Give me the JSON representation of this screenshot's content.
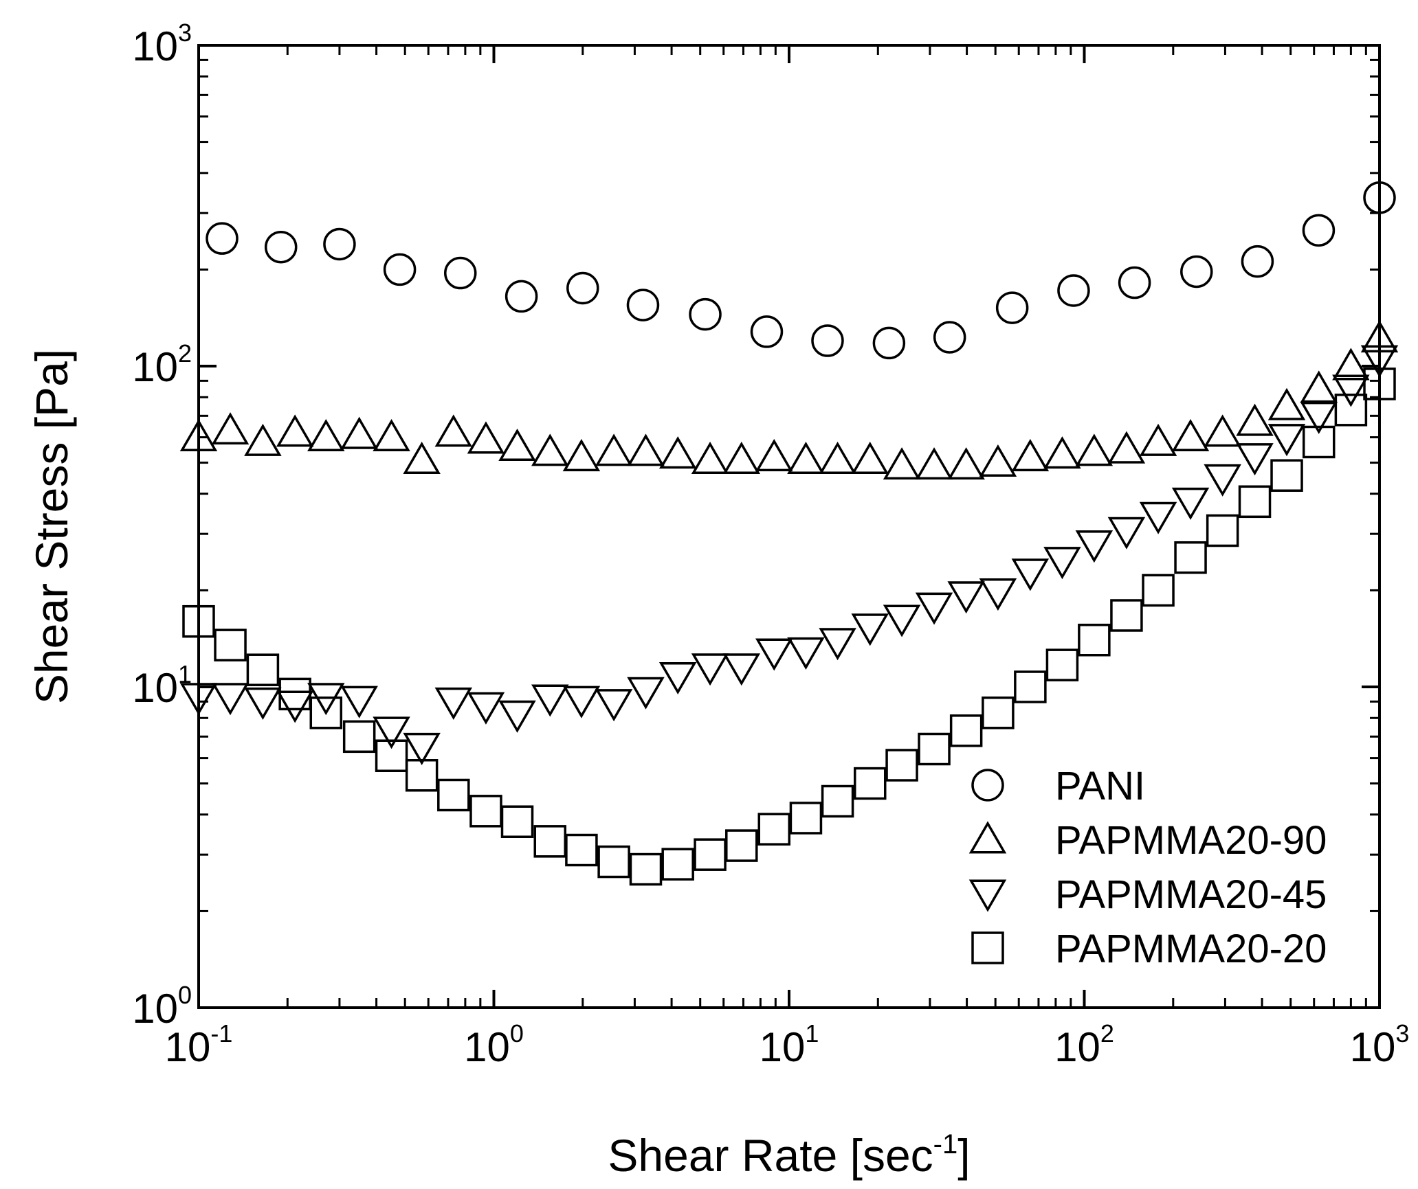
{
  "chart_data": {
    "type": "scatter",
    "title": "",
    "xlabel": "Shear Rate [sec",
    "xlabel_exp": "-1",
    "xlabel_suffix": "]",
    "ylabel": "Shear Stress [Pa]",
    "xscale": "log",
    "yscale": "log",
    "xlim": [
      0.1,
      1000
    ],
    "ylim": [
      1,
      1000
    ],
    "grid": false,
    "legend_position": "lower-right",
    "x_ticks": [
      {
        "value": 0.1,
        "base": "10",
        "exp": "-1"
      },
      {
        "value": 1,
        "base": "10",
        "exp": "0"
      },
      {
        "value": 10,
        "base": "10",
        "exp": "1"
      },
      {
        "value": 100,
        "base": "10",
        "exp": "2"
      },
      {
        "value": 1000,
        "base": "10",
        "exp": "3"
      }
    ],
    "y_ticks": [
      {
        "value": 1,
        "base": "10",
        "exp": "0"
      },
      {
        "value": 10,
        "base": "10",
        "exp": "1"
      },
      {
        "value": 100,
        "base": "10",
        "exp": "2"
      },
      {
        "value": 1000,
        "base": "10",
        "exp": "3"
      }
    ],
    "series": [
      {
        "name": "PANI",
        "marker": "circle",
        "points": [
          [
            0.12,
            250
          ],
          [
            0.19,
            235
          ],
          [
            0.3,
            240
          ],
          [
            0.48,
            200
          ],
          [
            0.77,
            195
          ],
          [
            1.24,
            165
          ],
          [
            2.0,
            175
          ],
          [
            3.2,
            155
          ],
          [
            5.2,
            145
          ],
          [
            8.4,
            128
          ],
          [
            13.5,
            120
          ],
          [
            21.8,
            118
          ],
          [
            35,
            123
          ],
          [
            57,
            152
          ],
          [
            92,
            172
          ],
          [
            148,
            182
          ],
          [
            240,
            197
          ],
          [
            386,
            212
          ],
          [
            622,
            265
          ],
          [
            1000,
            335
          ]
        ]
      },
      {
        "name": "PAPMMA20-90",
        "marker": "triangle-up",
        "points": [
          [
            0.1,
            60
          ],
          [
            0.128,
            63
          ],
          [
            0.165,
            58
          ],
          [
            0.212,
            62
          ],
          [
            0.27,
            60
          ],
          [
            0.35,
            61
          ],
          [
            0.45,
            60
          ],
          [
            0.57,
            51
          ],
          [
            0.73,
            62
          ],
          [
            0.94,
            59
          ],
          [
            1.2,
            56
          ],
          [
            1.55,
            54
          ],
          [
            1.98,
            52
          ],
          [
            2.55,
            54
          ],
          [
            3.27,
            54
          ],
          [
            4.2,
            53
          ],
          [
            5.4,
            51
          ],
          [
            6.9,
            51
          ],
          [
            8.9,
            52
          ],
          [
            11.4,
            51
          ],
          [
            14.6,
            51
          ],
          [
            18.8,
            51
          ],
          [
            24.1,
            49
          ],
          [
            31,
            49
          ],
          [
            39.8,
            49
          ],
          [
            51,
            50
          ],
          [
            65.6,
            52
          ],
          [
            84.2,
            53
          ],
          [
            108,
            54
          ],
          [
            139,
            55
          ],
          [
            178,
            58
          ],
          [
            229,
            60
          ],
          [
            294,
            62
          ],
          [
            378,
            67
          ],
          [
            485,
            75
          ],
          [
            623,
            85
          ],
          [
            800,
            100
          ],
          [
            1000,
            122
          ]
        ]
      },
      {
        "name": "PAPMMA20-45",
        "marker": "triangle-down",
        "points": [
          [
            0.1,
            9.3
          ],
          [
            0.128,
            9.3
          ],
          [
            0.165,
            9.0
          ],
          [
            0.212,
            8.8
          ],
          [
            0.27,
            9.3
          ],
          [
            0.35,
            9.1
          ],
          [
            0.45,
            7.3
          ],
          [
            0.57,
            6.5
          ],
          [
            0.73,
            9.0
          ],
          [
            0.94,
            8.7
          ],
          [
            1.2,
            8.2
          ],
          [
            1.55,
            9.2
          ],
          [
            1.98,
            9.1
          ],
          [
            2.55,
            8.9
          ],
          [
            3.27,
            9.7
          ],
          [
            4.2,
            10.8
          ],
          [
            5.4,
            11.5
          ],
          [
            6.9,
            11.5
          ],
          [
            8.9,
            12.8
          ],
          [
            11.4,
            12.9
          ],
          [
            14.6,
            13.8
          ],
          [
            18.8,
            15.3
          ],
          [
            24.1,
            16.3
          ],
          [
            31,
            17.8
          ],
          [
            39.8,
            19.3
          ],
          [
            51,
            19.7
          ],
          [
            65.6,
            22.7
          ],
          [
            84.2,
            24.7
          ],
          [
            108,
            27.8
          ],
          [
            139,
            30.6
          ],
          [
            178,
            34.1
          ],
          [
            229,
            37.8
          ],
          [
            294,
            44.7
          ],
          [
            378,
            52.0
          ],
          [
            485,
            59.7
          ],
          [
            623,
            70
          ],
          [
            800,
            85
          ],
          [
            1000,
            105
          ]
        ]
      },
      {
        "name": "PAPMMA20-20",
        "marker": "square",
        "points": [
          [
            0.1,
            16
          ],
          [
            0.128,
            13.5
          ],
          [
            0.165,
            11.3
          ],
          [
            0.212,
            9.5
          ],
          [
            0.27,
            8.3
          ],
          [
            0.35,
            7.0
          ],
          [
            0.45,
            6.1
          ],
          [
            0.57,
            5.3
          ],
          [
            0.73,
            4.6
          ],
          [
            0.94,
            4.1
          ],
          [
            1.2,
            3.8
          ],
          [
            1.55,
            3.3
          ],
          [
            1.98,
            3.1
          ],
          [
            2.55,
            2.85
          ],
          [
            3.27,
            2.7
          ],
          [
            4.2,
            2.8
          ],
          [
            5.4,
            3.0
          ],
          [
            6.9,
            3.2
          ],
          [
            8.9,
            3.6
          ],
          [
            11.4,
            3.9
          ],
          [
            14.6,
            4.4
          ],
          [
            18.8,
            5.0
          ],
          [
            24.1,
            5.7
          ],
          [
            31,
            6.4
          ],
          [
            39.8,
            7.3
          ],
          [
            51,
            8.3
          ],
          [
            65.6,
            10.0
          ],
          [
            84.2,
            11.7
          ],
          [
            108,
            14.0
          ],
          [
            139,
            16.7
          ],
          [
            178,
            20.0
          ],
          [
            229,
            25.3
          ],
          [
            294,
            30.7
          ],
          [
            378,
            37.8
          ],
          [
            485,
            45.6
          ],
          [
            623,
            58.0
          ],
          [
            800,
            73.0
          ],
          [
            1000,
            88.0
          ]
        ]
      }
    ],
    "legend": [
      {
        "name": "PANI",
        "marker": "circle"
      },
      {
        "name": "PAPMMA20-90",
        "marker": "triangle-up"
      },
      {
        "name": "PAPMMA20-45",
        "marker": "triangle-down"
      },
      {
        "name": "PAPMMA20-20",
        "marker": "square"
      }
    ]
  }
}
